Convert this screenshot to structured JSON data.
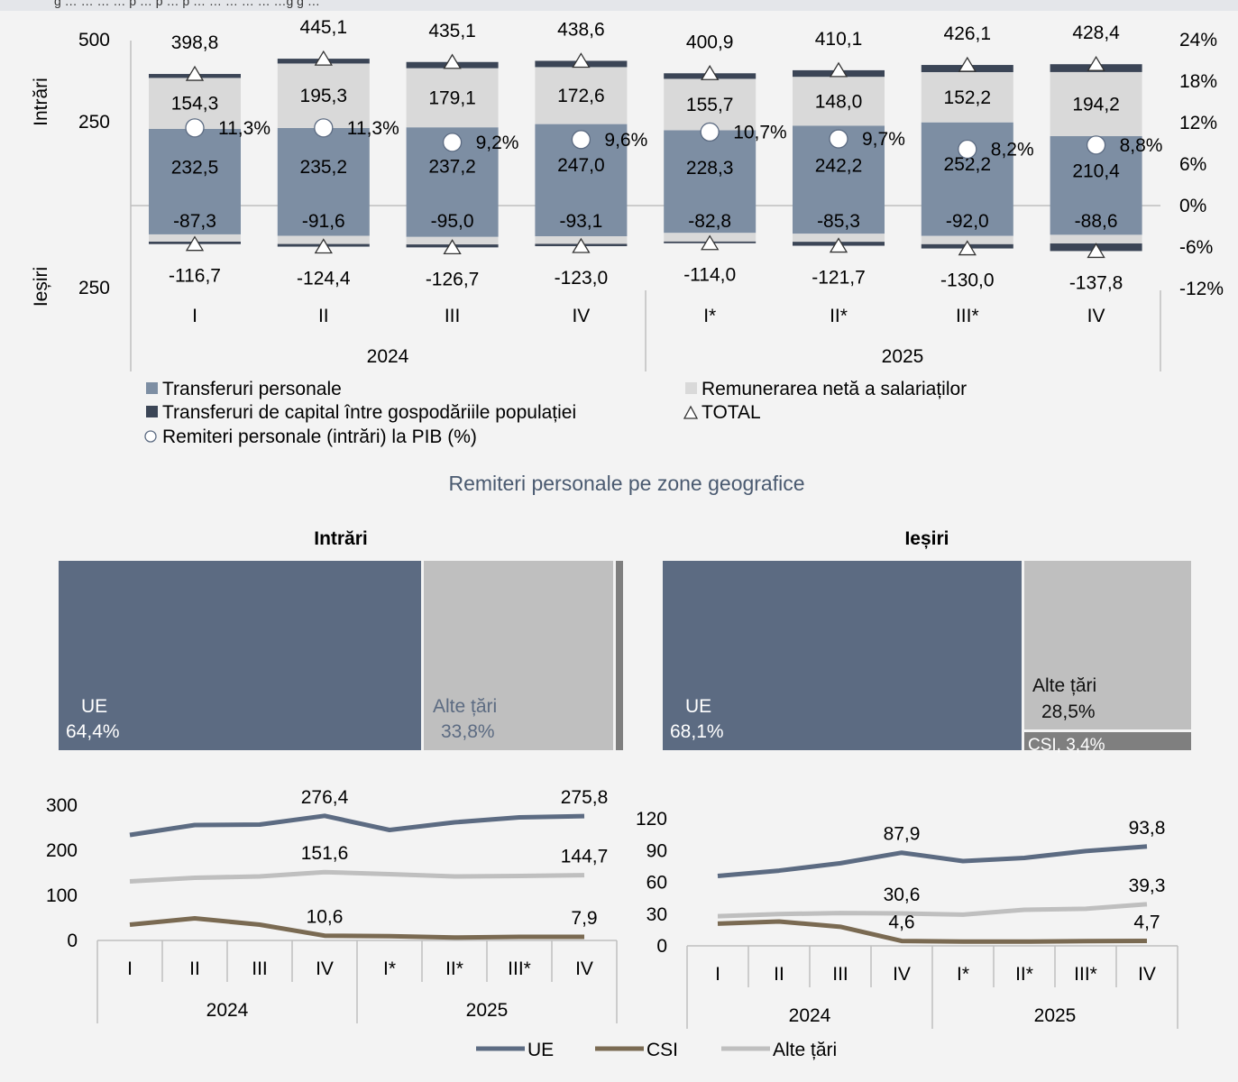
{
  "colors": {
    "transfers": "#7d8ea3",
    "remuneration": "#d9d9d9",
    "capital": "#3b4556",
    "ue": "#5c6b82",
    "csi": "#7a6a52",
    "other": "#bfbfbf",
    "csi_tree": "#7f7f7f",
    "subtitle": "#4a5a70"
  },
  "header": {
    "partial_text": "g  … … … … p …  p  … p … … … … … …g g …"
  },
  "top_chart": {
    "left_axis_top": "Intrări",
    "left_axis_bottom": "Ieșiri",
    "left_ticks": [
      "500",
      "250",
      "250"
    ],
    "right_ticks": [
      "24%",
      "18%",
      "12%",
      "6%",
      "0%",
      "-6%",
      "-12%"
    ],
    "years": [
      "2024",
      "2025"
    ]
  },
  "legend": {
    "transfers": "Transferuri personale",
    "remuneration": "Remunerarea netă a salariaților",
    "capital": "Transferuri de capital între gospodăriile populației",
    "total": "TOTAL",
    "gdp": "Remiteri personale (intrări) la PIB (%)"
  },
  "section_title": "Remiteri personale pe zone geografice",
  "treemaps": {
    "in_title": "Intrări",
    "out_title": "Ieșiri",
    "in": {
      "ue_label": "UE",
      "ue_value": "64,4%",
      "ue_share": 64.4,
      "other_label": "Alte țări",
      "other_value": "33,8%",
      "other_share": 33.8,
      "csi_share": 1.8
    },
    "out": {
      "ue_label": "UE",
      "ue_value": "68,1%",
      "ue_share": 68.1,
      "other_label": "Alte țări",
      "other_value": "28,5%",
      "other_share": 28.5,
      "csi_label": "CSI, 3,4%",
      "csi_share": 3.4
    }
  },
  "bottom_legend": {
    "ue": "UE",
    "csi": "CSI",
    "other": "Alte țări"
  },
  "chart_data": [
    {
      "type": "bar",
      "subtype": "stacked-bar-with-markers",
      "categories": [
        "I",
        "II",
        "III",
        "IV",
        "I*",
        "II*",
        "III*",
        "IV"
      ],
      "groups": [
        {
          "label": "2024",
          "span": [
            0,
            3
          ]
        },
        {
          "label": "2025",
          "span": [
            4,
            7
          ]
        }
      ],
      "series": [
        {
          "name": "Transferuri personale",
          "values": [
            232.5,
            235.2,
            237.2,
            247.0,
            228.3,
            242.2,
            252.2,
            210.4
          ],
          "labels": [
            "232,5",
            "235,2",
            "237,2",
            "247,0",
            "228,3",
            "242,2",
            "252,2",
            "210,4"
          ]
        },
        {
          "name": "Remunerarea netă a salariaților",
          "values": [
            154.3,
            195.3,
            179.1,
            172.6,
            155.7,
            148.0,
            152.2,
            194.2
          ],
          "labels": [
            "154,3",
            "195,3",
            "179,1",
            "172,6",
            "155,7",
            "148,0",
            "152,2",
            "194,2"
          ]
        },
        {
          "name": "Transferuri de capital între gospodăriile populației",
          "values": [
            12.0,
            14.6,
            18.8,
            19.0,
            16.9,
            19.9,
            21.7,
            23.8
          ]
        },
        {
          "name": "Transferuri personale (ieșiri)",
          "values": [
            -87.3,
            -91.6,
            -95.0,
            -93.1,
            -82.8,
            -85.3,
            -92.0,
            -88.6
          ],
          "labels": [
            "-87,3",
            "-91,6",
            "-95,0",
            "-93,1",
            "-82,8",
            "-85,3",
            "-92,0",
            "-88,6"
          ]
        },
        {
          "name": "Remunerarea netă a salariaților (ieșiri)",
          "values": [
            -22.0,
            -24.8,
            -22.7,
            -22.9,
            -26.2,
            -24.4,
            -25.0,
            -26.2
          ]
        },
        {
          "name": "Transferuri de capital (ieșiri)",
          "values": [
            -7.4,
            -8.0,
            -9.0,
            -7.0,
            -5.0,
            -12.0,
            -13.0,
            -23.0
          ]
        },
        {
          "name": "TOTAL",
          "values": [
            398.8,
            445.1,
            435.1,
            438.6,
            400.9,
            410.1,
            426.1,
            428.4
          ],
          "labels": [
            "398,8",
            "445,1",
            "435,1",
            "438,6",
            "400,9",
            "410,1",
            "426,1",
            "428,4"
          ]
        },
        {
          "name": "TOTAL (ieșiri)",
          "values": [
            -116.7,
            -124.4,
            -126.7,
            -123.0,
            -114.0,
            -121.7,
            -130.0,
            -137.8
          ],
          "labels": [
            "-116,7",
            "-124,4",
            "-126,7",
            "-123,0",
            "-114,0",
            "-121,7",
            "-130,0",
            "-137,8"
          ]
        },
        {
          "name": "Remiteri personale (intrări) la PIB (%)",
          "axis": "right",
          "values": [
            11.3,
            11.3,
            9.2,
            9.6,
            10.7,
            9.7,
            8.2,
            8.8
          ],
          "labels": [
            "11,3%",
            "11,3%",
            "9,2%",
            "9,6%",
            "10,7%",
            "9,7%",
            "8,2%",
            "8,8%"
          ]
        }
      ],
      "ylim": [
        -250,
        500
      ],
      "y2lim": [
        -12,
        24
      ]
    },
    {
      "type": "line",
      "categories": [
        "I",
        "II",
        "III",
        "IV",
        "I*",
        "II*",
        "III*",
        "IV"
      ],
      "groups": [
        {
          "label": "2024",
          "span": [
            0,
            3
          ]
        },
        {
          "label": "2025",
          "span": [
            4,
            7
          ]
        }
      ],
      "y_ticks": [
        "300",
        "200",
        "100",
        "0"
      ],
      "ylim": [
        0,
        300
      ],
      "series": [
        {
          "name": "UE",
          "values": [
            234,
            256,
            257,
            276.4,
            245,
            262,
            273,
            275.8
          ]
        },
        {
          "name": "Alte țări",
          "values": [
            131,
            139,
            142,
            151.6,
            147,
            142,
            143,
            144.7
          ]
        },
        {
          "name": "CSI",
          "values": [
            35,
            49,
            35,
            10.6,
            9.5,
            6.5,
            8.0,
            7.9
          ]
        }
      ],
      "point_labels": [
        {
          "series": "UE",
          "index": 3,
          "text": "276,4"
        },
        {
          "series": "UE",
          "index": 7,
          "text": "275,8"
        },
        {
          "series": "Alte țări",
          "index": 3,
          "text": "151,6"
        },
        {
          "series": "Alte țări",
          "index": 7,
          "text": "144,7"
        },
        {
          "series": "CSI",
          "index": 3,
          "text": "10,6"
        },
        {
          "series": "CSI",
          "index": 7,
          "text": "7,9"
        }
      ]
    },
    {
      "type": "line",
      "categories": [
        "I",
        "II",
        "III",
        "IV",
        "I*",
        "II*",
        "III*",
        "IV"
      ],
      "groups": [
        {
          "label": "2024",
          "span": [
            0,
            3
          ]
        },
        {
          "label": "2025",
          "span": [
            4,
            7
          ]
        }
      ],
      "y_ticks": [
        "120",
        "90",
        "60",
        "30",
        "0"
      ],
      "ylim": [
        0,
        120
      ],
      "series": [
        {
          "name": "UE",
          "values": [
            66,
            71,
            78,
            87.9,
            80,
            83,
            89.5,
            93.8
          ]
        },
        {
          "name": "Alte țări",
          "values": [
            28,
            30,
            31,
            30.6,
            29.5,
            34,
            35,
            39.3
          ]
        },
        {
          "name": "CSI",
          "values": [
            21,
            23,
            18,
            4.6,
            4.0,
            4.0,
            4.5,
            4.7
          ]
        }
      ],
      "point_labels": [
        {
          "series": "UE",
          "index": 3,
          "text": "87,9"
        },
        {
          "series": "UE",
          "index": 7,
          "text": "93,8"
        },
        {
          "series": "Alte țări",
          "index": 3,
          "text": "30,6"
        },
        {
          "series": "Alte țări",
          "index": 7,
          "text": "39,3"
        },
        {
          "series": "CSI",
          "index": 3,
          "text": "4,6"
        },
        {
          "series": "CSI",
          "index": 7,
          "text": "4,7"
        }
      ]
    }
  ]
}
